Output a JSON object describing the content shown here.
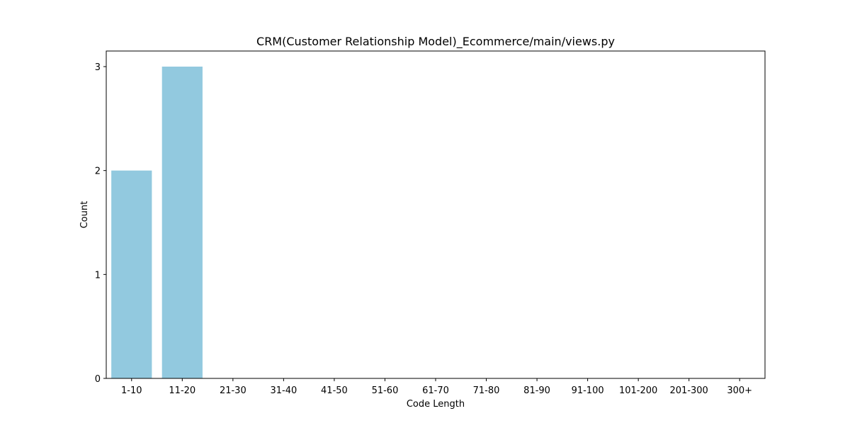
{
  "chart_data": {
    "type": "bar",
    "title": "CRM(Customer Relationship Model)_Ecommerce/main/views.py",
    "xlabel": "Code Length",
    "ylabel": "Count",
    "categories": [
      "1-10",
      "11-20",
      "21-30",
      "31-40",
      "41-50",
      "51-60",
      "61-70",
      "71-80",
      "81-90",
      "91-100",
      "101-200",
      "201-300",
      "300+"
    ],
    "values": [
      2,
      3,
      0,
      0,
      0,
      0,
      0,
      0,
      0,
      0,
      0,
      0,
      0
    ],
    "ylim": [
      0,
      3.15
    ],
    "yticks": [
      0,
      1,
      2,
      3
    ],
    "bar_color": "#92c9df",
    "grid": false,
    "legend": "none"
  }
}
